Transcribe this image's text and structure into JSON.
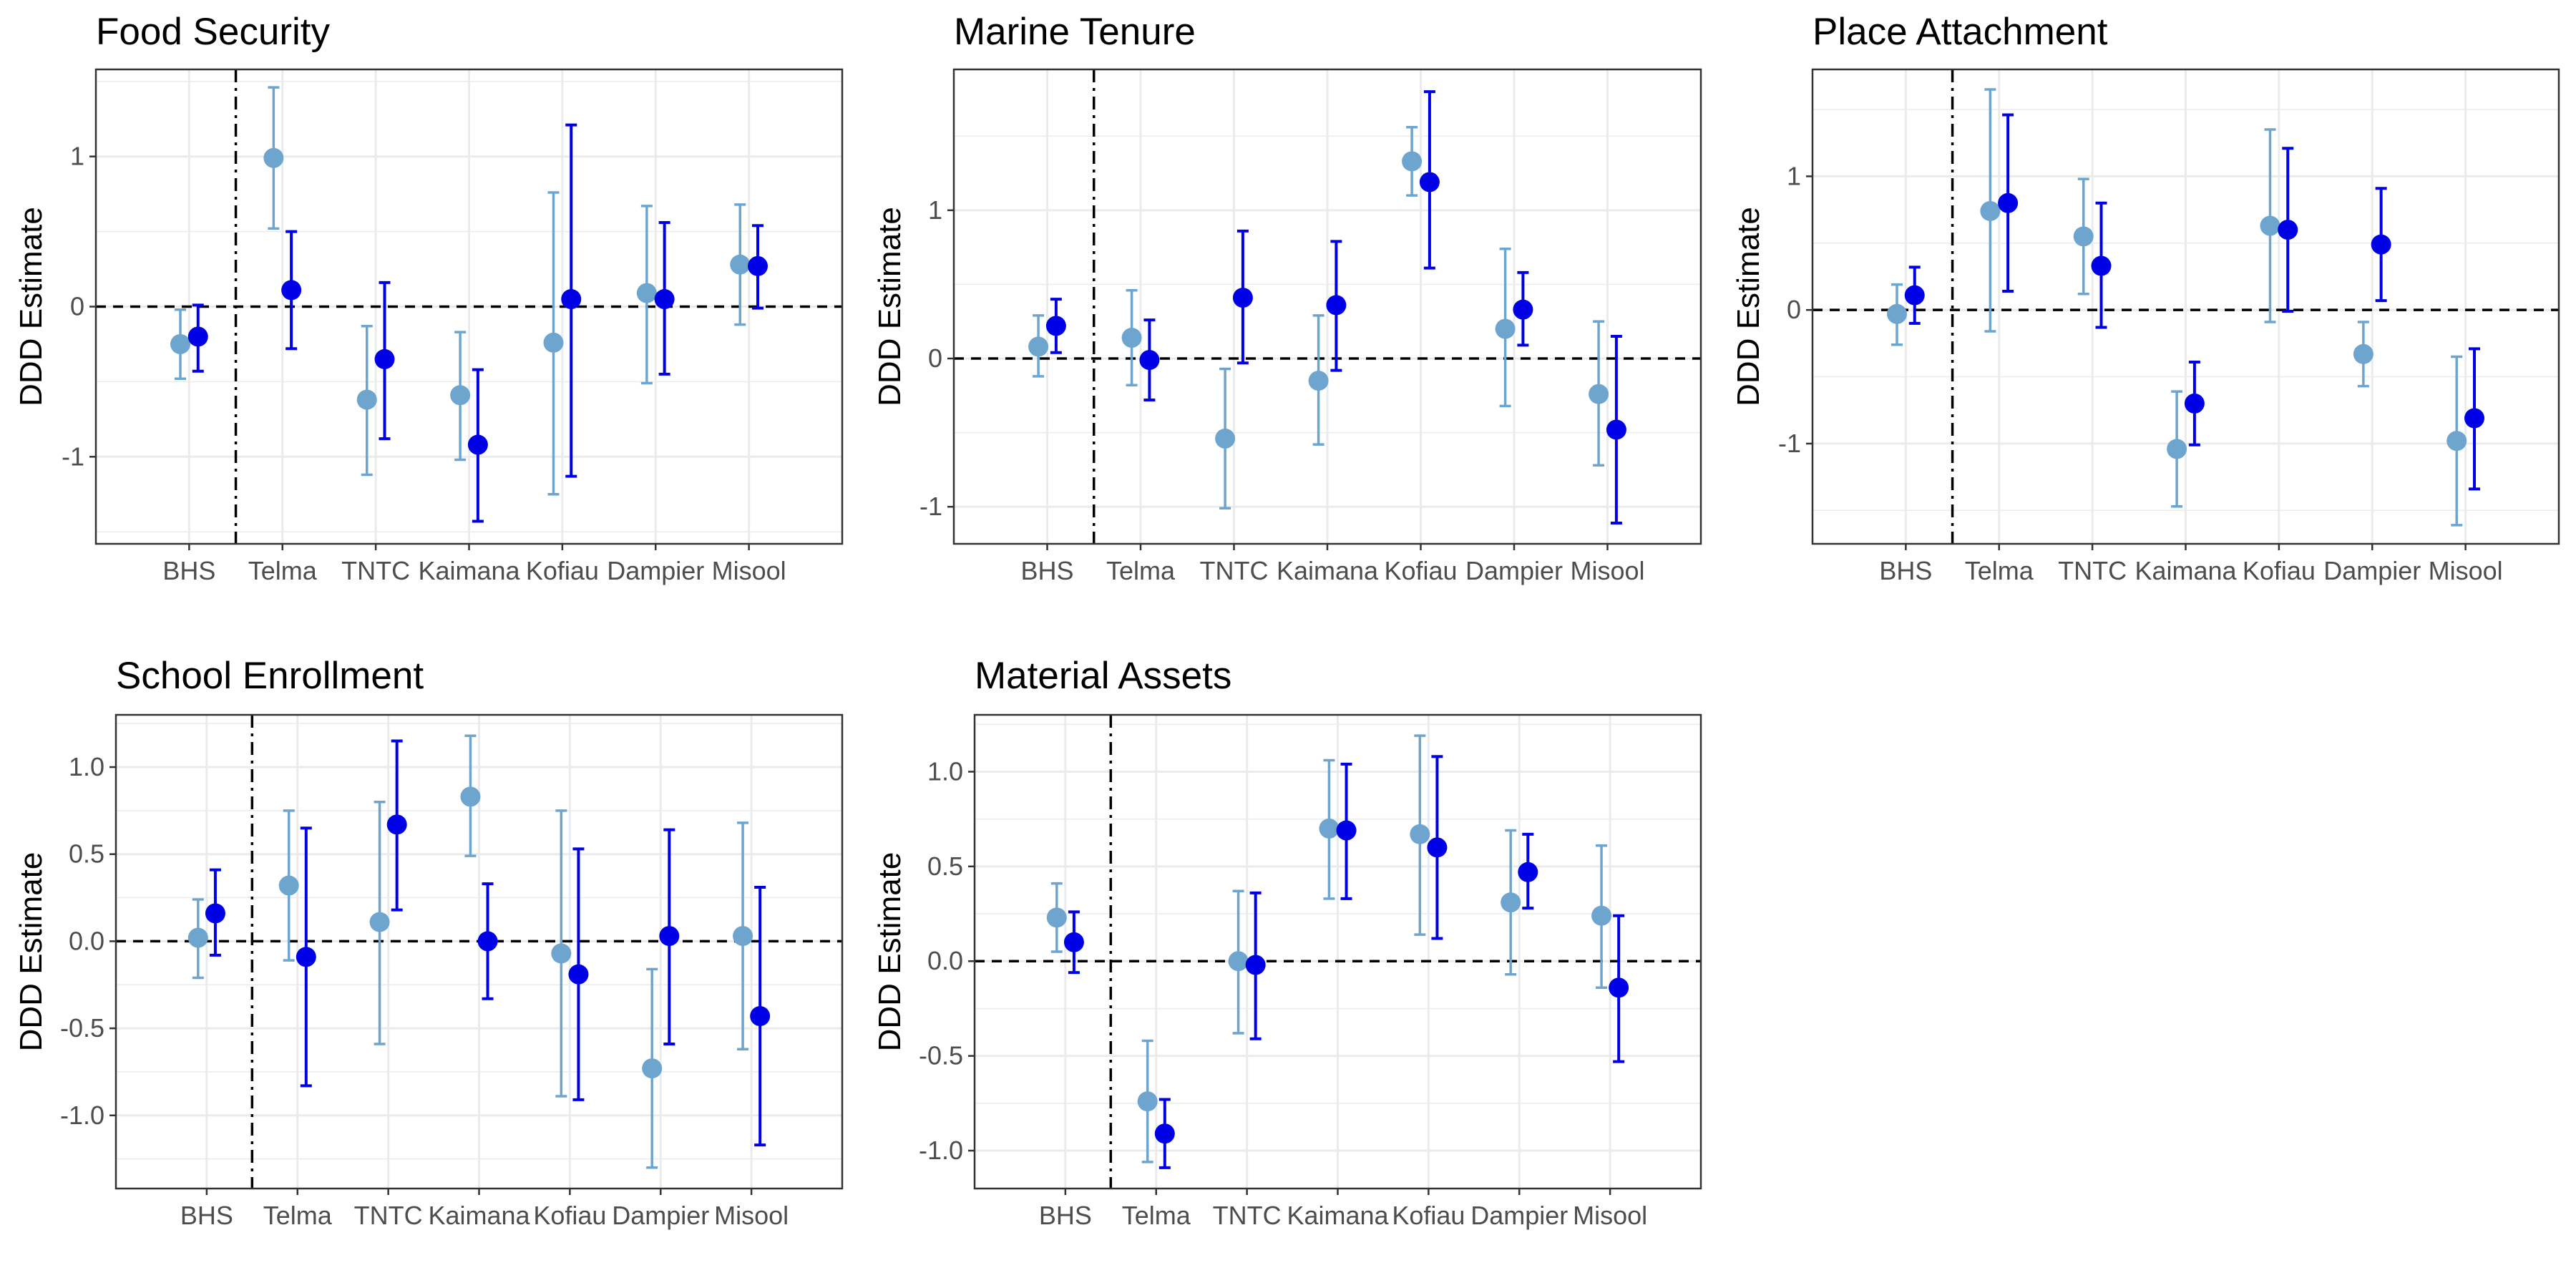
{
  "colors": {
    "light": "#6ea5cf",
    "dark": "#0000e6",
    "grid": "#ebebeb",
    "axis": "#333333"
  },
  "chart_data": [
    {
      "type": "scatter",
      "title": "Food Security",
      "ylabel": "DDD Estimate",
      "categories": [
        "BHS",
        "Telma",
        "TNTC",
        "Kaimana",
        "Kofiau",
        "Dampier",
        "Misool"
      ],
      "ylim": [
        -1.58,
        1.58
      ],
      "yticks": [
        -1,
        0,
        1
      ],
      "yminor": [
        -1.5,
        -0.5,
        0.5,
        1.5
      ],
      "ytick_labels": [
        "-1",
        "0",
        "1"
      ],
      "divider_after": "BHS",
      "grid": true,
      "series": [
        {
          "color": "light",
          "values": [
            -0.25,
            0.99,
            -0.62,
            -0.59,
            -0.24,
            0.09,
            0.28
          ],
          "lower": [
            -0.48,
            0.52,
            -1.12,
            -1.02,
            -1.25,
            -0.51,
            -0.12
          ],
          "upper": [
            -0.02,
            1.46,
            -0.13,
            -0.17,
            0.76,
            0.67,
            0.68
          ]
        },
        {
          "color": "dark",
          "values": [
            -0.2,
            0.11,
            -0.35,
            -0.92,
            0.05,
            0.05,
            0.27
          ],
          "lower": [
            -0.43,
            -0.28,
            -0.88,
            -1.43,
            -1.13,
            -0.45,
            -0.01
          ],
          "upper": [
            0.01,
            0.5,
            0.16,
            -0.42,
            1.21,
            0.56,
            0.54
          ]
        }
      ]
    },
    {
      "type": "scatter",
      "title": "Marine Tenure",
      "ylabel": "DDD Estimate",
      "categories": [
        "BHS",
        "Telma",
        "TNTC",
        "Kaimana",
        "Kofiau",
        "Dampier",
        "Misool"
      ],
      "ylim": [
        -1.25,
        1.95
      ],
      "yticks": [
        -1,
        0,
        1
      ],
      "yminor": [
        -0.5,
        0.5,
        1.5
      ],
      "ytick_labels": [
        "-1",
        "0",
        "1"
      ],
      "divider_after": "BHS",
      "grid": true,
      "series": [
        {
          "color": "light",
          "values": [
            0.08,
            0.14,
            -0.54,
            -0.15,
            1.33,
            0.2,
            -0.24
          ],
          "lower": [
            -0.12,
            -0.18,
            -1.01,
            -0.58,
            1.1,
            -0.32,
            -0.72
          ],
          "upper": [
            0.29,
            0.46,
            -0.07,
            0.29,
            1.56,
            0.74,
            0.25
          ]
        },
        {
          "color": "dark",
          "values": [
            0.22,
            -0.01,
            0.41,
            0.36,
            1.19,
            0.33,
            -0.48
          ],
          "lower": [
            0.04,
            -0.28,
            -0.03,
            -0.08,
            0.61,
            0.09,
            -1.11
          ],
          "upper": [
            0.4,
            0.26,
            0.86,
            0.79,
            1.8,
            0.58,
            0.15
          ]
        }
      ]
    },
    {
      "type": "scatter",
      "title": "Place Attachment",
      "ylabel": "DDD Estimate",
      "categories": [
        "BHS",
        "Telma",
        "TNTC",
        "Kaimana",
        "Kofiau",
        "Dampier",
        "Misool"
      ],
      "ylim": [
        -1.75,
        1.8
      ],
      "yticks": [
        -1,
        0,
        1
      ],
      "yminor": [
        -1.5,
        -0.5,
        0.5,
        1.5
      ],
      "ytick_labels": [
        "-1",
        "0",
        "1"
      ],
      "divider_after": "BHS",
      "grid": true,
      "series": [
        {
          "color": "light",
          "values": [
            -0.03,
            0.74,
            0.55,
            -1.04,
            0.63,
            -0.33,
            -0.98
          ],
          "lower": [
            -0.26,
            -0.16,
            0.12,
            -1.47,
            -0.09,
            -0.57,
            -1.61
          ],
          "upper": [
            0.19,
            1.65,
            0.98,
            -0.61,
            1.35,
            -0.09,
            -0.35
          ]
        },
        {
          "color": "dark",
          "values": [
            0.11,
            0.8,
            0.33,
            -0.7,
            0.6,
            0.49,
            -0.81
          ],
          "lower": [
            -0.1,
            0.14,
            -0.13,
            -1.01,
            -0.01,
            0.07,
            -1.34
          ],
          "upper": [
            0.32,
            1.46,
            0.8,
            -0.39,
            1.21,
            0.91,
            -0.29
          ]
        }
      ]
    },
    {
      "type": "scatter",
      "title": "School Enrollment",
      "ylabel": "DDD Estimate",
      "categories": [
        "BHS",
        "Telma",
        "TNTC",
        "Kaimana",
        "Kofiau",
        "Dampier",
        "Misool"
      ],
      "ylim": [
        -1.42,
        1.3
      ],
      "yticks": [
        -1.0,
        -0.5,
        0.0,
        0.5,
        1.0
      ],
      "yminor": [
        -1.25,
        -0.75,
        -0.25,
        0.25,
        0.75,
        1.25
      ],
      "ytick_labels": [
        "-1.0",
        "-0.5",
        "0.0",
        "0.5",
        "1.0"
      ],
      "divider_after": "BHS",
      "grid": true,
      "series": [
        {
          "color": "light",
          "values": [
            0.02,
            0.32,
            0.11,
            0.83,
            -0.07,
            -0.73,
            0.03
          ],
          "lower": [
            -0.21,
            -0.11,
            -0.59,
            0.49,
            -0.89,
            -1.3,
            -0.62
          ],
          "upper": [
            0.24,
            0.75,
            0.8,
            1.18,
            0.75,
            -0.16,
            0.68
          ]
        },
        {
          "color": "dark",
          "values": [
            0.16,
            -0.09,
            0.67,
            0.0,
            -0.19,
            0.03,
            -0.43
          ],
          "lower": [
            -0.08,
            -0.83,
            0.18,
            -0.33,
            -0.91,
            -0.59,
            -1.17
          ],
          "upper": [
            0.41,
            0.65,
            1.15,
            0.33,
            0.53,
            0.64,
            0.31
          ]
        }
      ]
    },
    {
      "type": "scatter",
      "title": "Material Assets",
      "ylabel": "DDD Estimate",
      "categories": [
        "BHS",
        "Telma",
        "TNTC",
        "Kaimana",
        "Kofiau",
        "Dampier",
        "Misool"
      ],
      "ylim": [
        -1.2,
        1.3
      ],
      "yticks": [
        -1.0,
        -0.5,
        0.0,
        0.5,
        1.0
      ],
      "yminor": [
        -0.75,
        -0.25,
        0.25,
        0.75,
        1.25
      ],
      "ytick_labels": [
        "-1.0",
        "-0.5",
        "0.0",
        "0.5",
        "1.0"
      ],
      "divider_after": "BHS",
      "grid": true,
      "series": [
        {
          "color": "light",
          "values": [
            0.23,
            -0.74,
            0.0,
            0.7,
            0.67,
            0.31,
            0.24
          ],
          "lower": [
            0.05,
            -1.06,
            -0.38,
            0.33,
            0.14,
            -0.07,
            -0.14
          ],
          "upper": [
            0.41,
            -0.42,
            0.37,
            1.06,
            1.19,
            0.69,
            0.61
          ]
        },
        {
          "color": "dark",
          "values": [
            0.1,
            -0.91,
            -0.02,
            0.69,
            0.6,
            0.47,
            -0.14
          ],
          "lower": [
            -0.06,
            -1.09,
            -0.41,
            0.33,
            0.12,
            0.28,
            -0.53
          ],
          "upper": [
            0.26,
            -0.73,
            0.36,
            1.04,
            1.08,
            0.67,
            0.24
          ]
        }
      ]
    }
  ]
}
